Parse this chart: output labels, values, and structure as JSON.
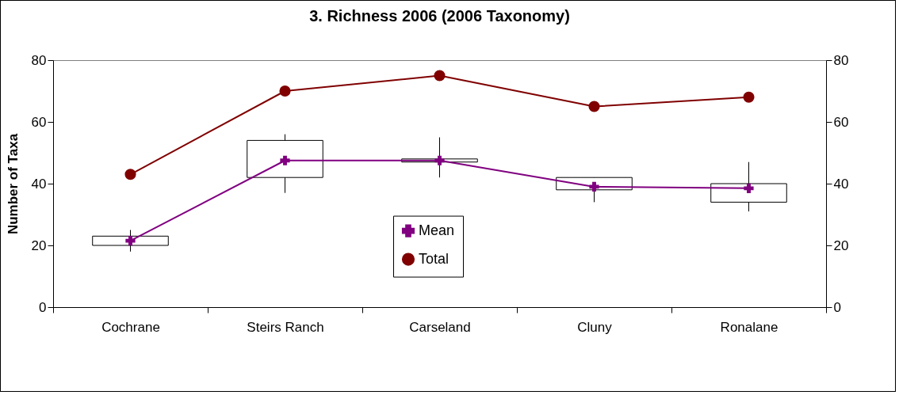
{
  "chart_data": {
    "type": "box",
    "title": "3.  Richness 2006 (2006 Taxonomy)",
    "ylabel": "Number of Taxa",
    "categories": [
      "Cochrane",
      "Steirs Ranch",
      "Carseland",
      "Cluny",
      "Ronalane"
    ],
    "ylim": [
      0,
      80
    ],
    "yticks": [
      0,
      20,
      40,
      60,
      80
    ],
    "y2lim": [
      0,
      80
    ],
    "y2ticks": [
      0,
      20,
      40,
      60,
      80
    ],
    "grid": false,
    "legend": "bottom",
    "series": [
      {
        "color": "#000000",
        "boxes": [
          {
            "low": 18,
            "q1": 20,
            "q3": 23,
            "high": 25
          },
          {
            "low": 37,
            "q1": 42,
            "q3": 54,
            "high": 56
          },
          {
            "low": 42,
            "q1": 47,
            "q3": 48,
            "high": 55
          },
          {
            "low": 34,
            "q1": 38,
            "q3": 42,
            "high": 42
          },
          {
            "low": 31,
            "q1": 34,
            "q3": 40,
            "high": 47
          }
        ]
      },
      {
        "type": "line",
        "name": "Mean",
        "color": "#800080",
        "marker": "cross",
        "values": [
          21.5,
          47.5,
          47.5,
          39,
          38.5
        ]
      },
      {
        "type": "line",
        "name": "Total",
        "color": "#800000",
        "marker": "circle",
        "values": [
          43,
          70,
          75,
          65,
          68
        ]
      }
    ]
  }
}
